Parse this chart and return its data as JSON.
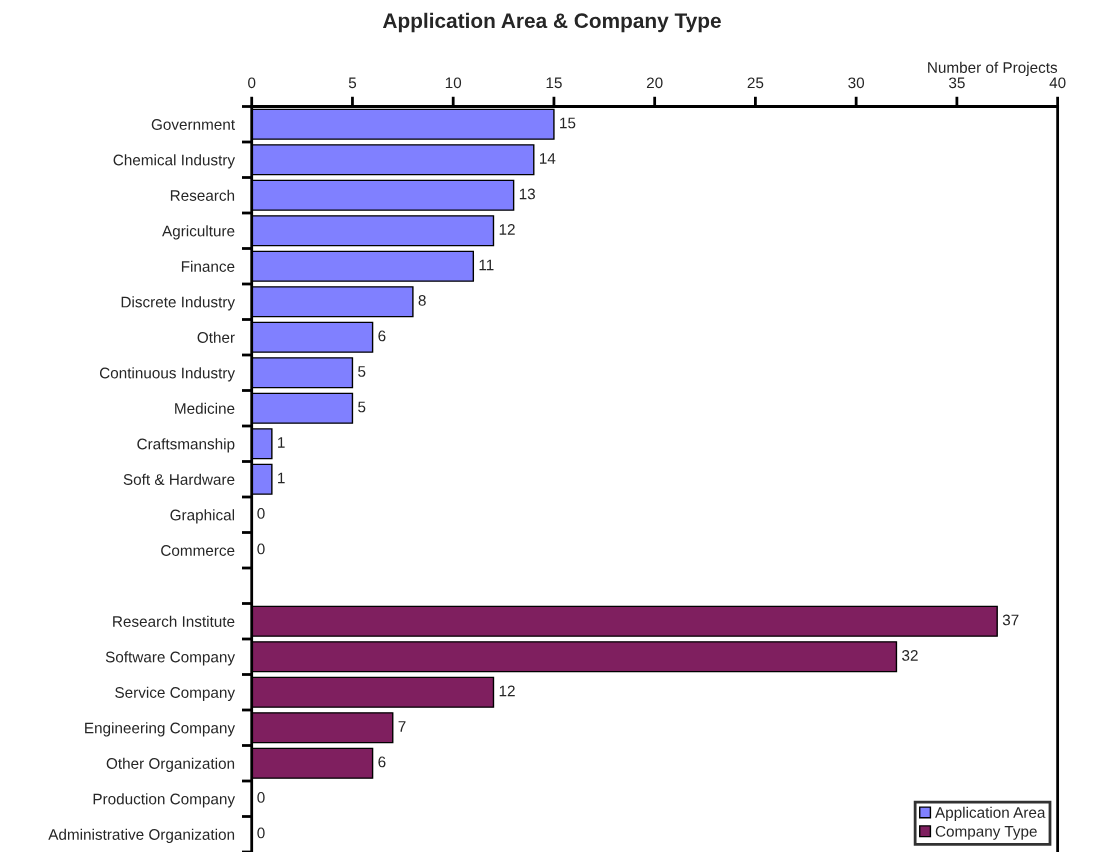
{
  "chart_data": {
    "type": "bar",
    "title": "Application Area & Company Type",
    "xlabel": "Number of Projects",
    "orientation": "horizontal",
    "categories": [
      "Government",
      "Chemical Industry",
      "Research",
      "Agriculture",
      "Finance",
      "Discrete Industry",
      "Other",
      "Continuous Industry",
      "Medicine",
      "Craftsmanship",
      "Soft & Hardware",
      "Graphical",
      "Commerce",
      null,
      "Research Institute",
      "Software Company",
      "Service Company",
      "Engineering Company",
      "Other Organization",
      "Production Company",
      "Administrative Organization"
    ],
    "series": [
      {
        "name": "Application Area",
        "color": "#8080ff",
        "values": [
          15,
          14,
          13,
          12,
          11,
          8,
          6,
          5,
          5,
          1,
          1,
          0,
          0,
          null,
          null,
          null,
          null,
          null,
          null,
          null,
          null
        ]
      },
      {
        "name": "Company Type",
        "color": "#7f1f5f",
        "values": [
          null,
          null,
          null,
          null,
          null,
          null,
          null,
          null,
          null,
          null,
          null,
          null,
          null,
          null,
          37,
          32,
          12,
          7,
          6,
          0,
          0
        ]
      }
    ],
    "xlim": [
      0,
      40
    ],
    "xticks": [
      0,
      5,
      10,
      15,
      20,
      25,
      30,
      35,
      40
    ],
    "data_labels": true,
    "grid": false,
    "legend": "bottom right"
  }
}
